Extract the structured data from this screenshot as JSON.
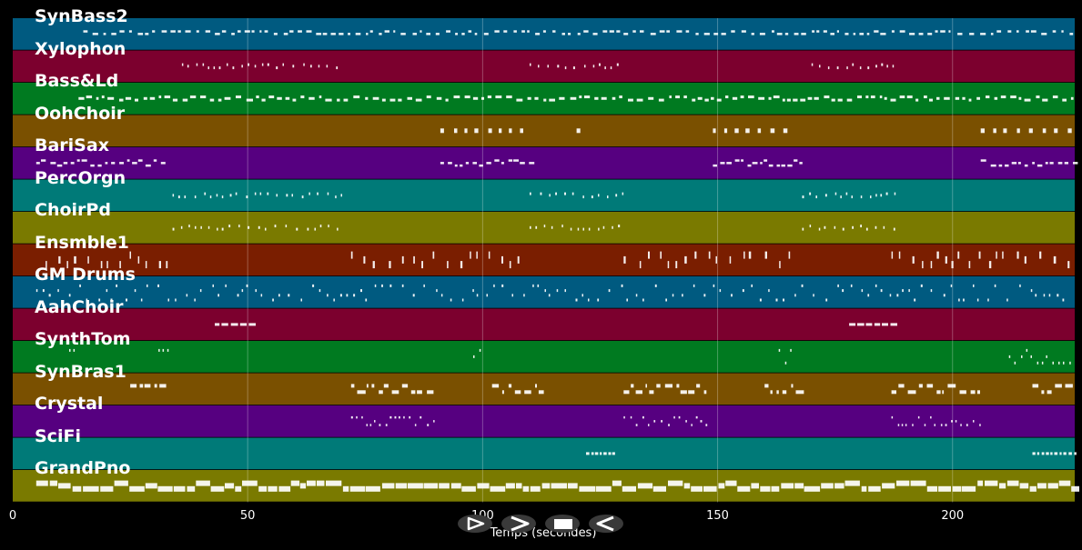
{
  "tracks": [
    {
      "name": "SynBass2",
      "color": "#005a80"
    },
    {
      "name": "Xylophon",
      "color": "#7c002e"
    },
    {
      "name": "Bass&Ld",
      "color": "#007a20"
    },
    {
      "name": "OohChoir",
      "color": "#7a5000"
    },
    {
      "name": "BariSax",
      "color": "#560080"
    },
    {
      "name": "PercOrgn",
      "color": "#007a78"
    },
    {
      "name": "ChoirPd",
      "color": "#7a7a00"
    },
    {
      "name": "Ensmble1",
      "color": "#7a1e00"
    },
    {
      "name": "GM Drums",
      "color": "#005a80"
    },
    {
      "name": "AahChoir",
      "color": "#7c002e"
    },
    {
      "name": "SynthTom",
      "color": "#007a20"
    },
    {
      "name": "SynBras1",
      "color": "#7a5000"
    },
    {
      "name": "Crystal",
      "color": "#560080"
    },
    {
      "name": "SciFi",
      "color": "#007a78"
    },
    {
      "name": "GrandPno",
      "color": "#7a7a00"
    }
  ],
  "axis": {
    "xlabel": "Temps (secondes)",
    "ticks": [
      "0",
      "50",
      "100",
      "150",
      "200"
    ],
    "xlim": [
      0,
      226
    ]
  },
  "controls": [
    {
      "name": "play-button",
      "icon": "play-icon"
    },
    {
      "name": "forward-button",
      "icon": "chevron-right-icon"
    },
    {
      "name": "stop-button",
      "icon": "stop-icon"
    },
    {
      "name": "back-button",
      "icon": "chevron-left-icon"
    }
  ]
}
